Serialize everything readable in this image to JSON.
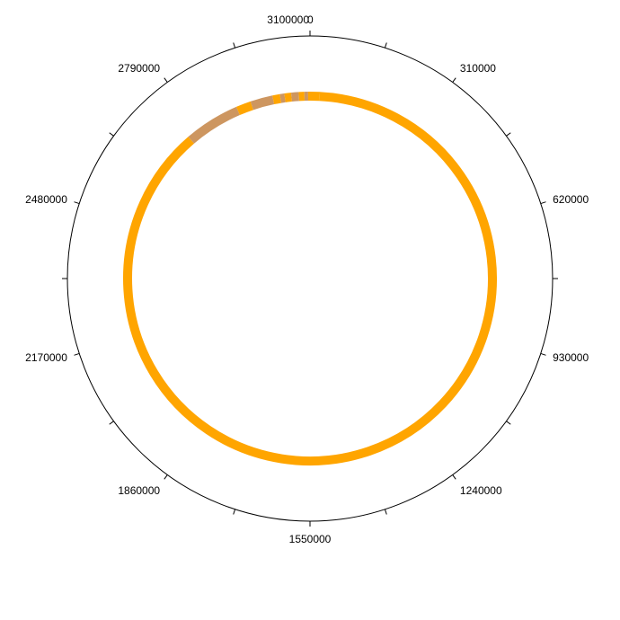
{
  "genome_map": {
    "genome_length": 3100000,
    "tick_interval_major": 310000,
    "tick_interval_minor": 155000,
    "tick_labels": [
      "0",
      "310000",
      "620000",
      "930000",
      "1240000",
      "1550000",
      "1860000",
      "2170000",
      "2480000",
      "2790000",
      "3100000"
    ],
    "colors": {
      "axis": "#000000",
      "primary_track": "#FFA500",
      "secondary_track": "#CD9660"
    },
    "segments": [
      {
        "start": 0,
        "end": 25000,
        "color": "#FFA500"
      },
      {
        "start": 25000,
        "end": 2750000,
        "color": "#FFA500"
      },
      {
        "start": 2750000,
        "end": 2900000,
        "color": "#CD9660"
      },
      {
        "start": 2900000,
        "end": 2940000,
        "color": "#FFA500"
      },
      {
        "start": 2940000,
        "end": 3000000,
        "color": "#CD9660"
      },
      {
        "start": 3000000,
        "end": 3020000,
        "color": "#FFA500"
      },
      {
        "start": 3020000,
        "end": 3032000,
        "color": "#CD9660"
      },
      {
        "start": 3032000,
        "end": 3050000,
        "color": "#FFA500"
      },
      {
        "start": 3050000,
        "end": 3070000,
        "color": "#CD9660"
      },
      {
        "start": 3070000,
        "end": 3085000,
        "color": "#FFA500"
      },
      {
        "start": 3085000,
        "end": 3095000,
        "color": "#CD9660"
      },
      {
        "start": 3095000,
        "end": 3100000,
        "color": "#FFA500"
      }
    ]
  }
}
